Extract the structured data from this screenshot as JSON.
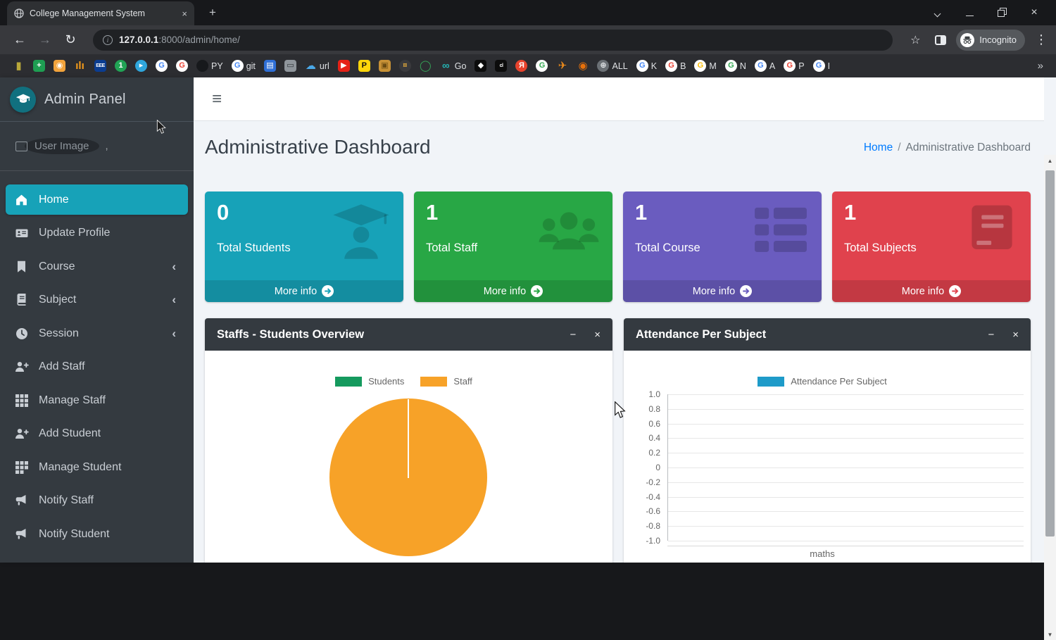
{
  "browser": {
    "tab_title": "College Management System",
    "icons": {
      "tab_close": "×",
      "new_tab": "+",
      "back": "←",
      "forward": "→",
      "reload": "↻",
      "info": "i",
      "star": "☆",
      "dots": "⋮",
      "overflow": "»",
      "scroll_up": "▲",
      "scroll_down": "▼"
    },
    "url_host": "127.0.0.1",
    "url_rest": ":8000/admin/home/",
    "incognito_label": "Incognito",
    "bookmarks": [
      {
        "ch": "▮",
        "bg": "",
        "c": "#b9a83a"
      },
      {
        "ch": "+",
        "bg": "#1e9e52",
        "c": "#fff"
      },
      {
        "ch": "◉",
        "bg": "#f2a33c",
        "c": "#fff"
      },
      {
        "ch": "ılı",
        "bg": "",
        "c": "#f59c1a"
      },
      {
        "ch": "EEE",
        "bg": "#0b3d91",
        "c": "#fff",
        "tiny": true
      },
      {
        "ch": "1",
        "bg": "#21a355",
        "c": "#fff",
        "round": true
      },
      {
        "ch": "▸",
        "bg": "#2fa6dc",
        "c": "#fff",
        "round": true
      },
      {
        "ch": "G",
        "bg": "#fff",
        "c": "#4285f4",
        "round": true
      },
      {
        "ch": "G",
        "bg": "#fff",
        "c": "#ea4335",
        "round": true
      },
      {
        "ch": "",
        "bg": "#17191c",
        "c": "#fff",
        "round": true,
        "label": "PY"
      },
      {
        "ch": "G",
        "bg": "#fff",
        "c": "#4285f4",
        "round": true,
        "label": "git"
      },
      {
        "ch": "▤",
        "bg": "#2f6fd6",
        "c": "#fff"
      },
      {
        "ch": "▭",
        "bg": "#8f959b",
        "c": "#2f3338"
      },
      {
        "ch": "☁",
        "bg": "",
        "c": "#4aa8e8",
        "label": "url"
      },
      {
        "ch": "▶",
        "bg": "#e62117",
        "c": "#fff"
      },
      {
        "ch": "P",
        "bg": "#ffd60a",
        "c": "#111"
      },
      {
        "ch": "▣",
        "bg": "#c79136",
        "c": "#6b4b12"
      },
      {
        "ch": "¤",
        "bg": "#3a3a3d",
        "c": "#d9a43c",
        "round": true
      },
      {
        "ch": "◯",
        "bg": "",
        "c": "#35a457"
      },
      {
        "ch": "∞",
        "bg": "",
        "c": "#24b3b3",
        "label": "Go"
      },
      {
        "ch": "◆",
        "bg": "#0c0c0c",
        "c": "#fff"
      },
      {
        "ch": "cl",
        "bg": "#0c0c0c",
        "c": "#fff",
        "tiny": true
      },
      {
        "ch": "Я",
        "bg": "#e8432d",
        "c": "#fff",
        "round": true
      },
      {
        "ch": "G",
        "bg": "#fff",
        "c": "#34a853",
        "round": true
      },
      {
        "ch": "✈",
        "bg": "",
        "c": "#f08c1a"
      },
      {
        "ch": "◉",
        "bg": "",
        "c": "#e8710a"
      },
      {
        "ch": "⊕",
        "bg": "#6b7075",
        "c": "#e8eaed",
        "round": true,
        "label": "ALL"
      },
      {
        "ch": "G",
        "bg": "#fff",
        "c": "#4285f4",
        "round": true,
        "label": "K"
      },
      {
        "ch": "G",
        "bg": "#fff",
        "c": "#ea4335",
        "round": true,
        "label": "B"
      },
      {
        "ch": "G",
        "bg": "#fff",
        "c": "#fbbc05",
        "round": true,
        "label": "M"
      },
      {
        "ch": "G",
        "bg": "#fff",
        "c": "#34a853",
        "round": true,
        "label": "N"
      },
      {
        "ch": "G",
        "bg": "#fff",
        "c": "#4285f4",
        "round": true,
        "label": "A"
      },
      {
        "ch": "G",
        "bg": "#fff",
        "c": "#ea4335",
        "round": true,
        "label": "P"
      },
      {
        "ch": "G",
        "bg": "#fff",
        "c": "#4285f4",
        "round": true,
        "label": "I"
      }
    ]
  },
  "sidebar": {
    "brand": "Admin Panel",
    "user_image_alt": "User Image",
    "user_image_suffix": ",",
    "chevron": "‹",
    "items": [
      {
        "label": "Home",
        "active": true
      },
      {
        "label": "Update Profile"
      },
      {
        "label": "Course",
        "chevron": true
      },
      {
        "label": "Subject",
        "chevron": true
      },
      {
        "label": "Session",
        "chevron": true
      },
      {
        "label": "Add Staff"
      },
      {
        "label": "Manage Staff"
      },
      {
        "label": "Add Student"
      },
      {
        "label": "Manage Student"
      },
      {
        "label": "Notify Staff"
      },
      {
        "label": "Notify Student"
      }
    ]
  },
  "header": {
    "title": "Administrative Dashboard",
    "hamburger": "≡"
  },
  "breadcrumb": {
    "home": "Home",
    "sep": "/",
    "current": "Administrative Dashboard"
  },
  "cards": [
    {
      "value": "0",
      "label": "Total Students",
      "more": "More info",
      "color": "#17a2b8"
    },
    {
      "value": "1",
      "label": "Total Staff",
      "more": "More info",
      "color": "#28a745"
    },
    {
      "value": "1",
      "label": "Total Course",
      "more": "More info",
      "color": "#6a5cbf"
    },
    {
      "value": "1",
      "label": "Total Subjects",
      "more": "More info",
      "color": "#e0424d"
    }
  ],
  "panels": [
    {
      "title": "Staffs - Students Overview",
      "collapse": "−",
      "close": "×"
    },
    {
      "title": "Attendance Per Subject",
      "collapse": "−",
      "close": "×"
    }
  ],
  "chart_data": [
    {
      "type": "pie",
      "title": "Staffs - Students Overview",
      "labels": [
        "Students",
        "Staff"
      ],
      "values": [
        0,
        1
      ],
      "colors": [
        "#159a5e",
        "#f7a228"
      ],
      "legend_position": "top"
    },
    {
      "type": "bar",
      "title": "Attendance Per Subject",
      "categories": [
        "maths"
      ],
      "series": [
        {
          "name": "Attendance Per Subject",
          "values": [
            0
          ]
        }
      ],
      "color": "#1e9bc9",
      "ylim": [
        -1.0,
        1.0
      ],
      "yticks": [
        "1.0",
        "0.8",
        "0.6",
        "0.4",
        "0.2",
        "0",
        "-0.2",
        "-0.4",
        "-0.6",
        "-0.8",
        "-1.0"
      ],
      "grid": true,
      "legend_position": "top",
      "xlabel": "",
      "ylabel": ""
    }
  ]
}
